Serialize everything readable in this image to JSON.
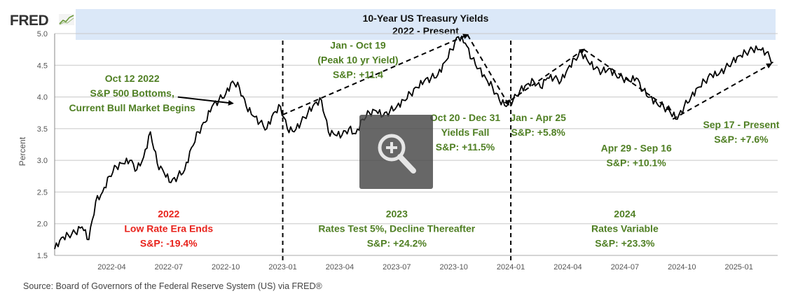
{
  "logo": {
    "text": "FRED"
  },
  "title": {
    "line1": "10-Year US Treasury Yields",
    "line2": "2022 - Present"
  },
  "source": "Source: Board of Governors of the Federal Reserve System (US) via FRED®",
  "zoom_icon": "zoom-in-icon",
  "colors": {
    "line": "#000000",
    "green": "#4f7f23",
    "red": "#e8221b",
    "banner": "#dbe8f8",
    "grid": "#c8c8c8"
  },
  "chart_data": {
    "type": "line",
    "title": "10-Year US Treasury Yields 2022 - Present",
    "ylabel": "Percent",
    "xlabel": "",
    "ylim": [
      1.5,
      5.0
    ],
    "xlim": [
      2022.0,
      2025.17
    ],
    "grid": true,
    "y_ticks": [
      1.5,
      2.0,
      2.5,
      3.0,
      3.5,
      4.0,
      4.5,
      5.0
    ],
    "y_tick_labels": [
      "1.5",
      "2.0",
      "2.5",
      "3.0",
      "3.5",
      "4.0",
      "4.5",
      "5.0"
    ],
    "x_ticks": [
      {
        "x": 2022.25,
        "label": "2022-04"
      },
      {
        "x": 2022.5,
        "label": "2022-07"
      },
      {
        "x": 2022.75,
        "label": "2022-10"
      },
      {
        "x": 2023.0,
        "label": "2023-01"
      },
      {
        "x": 2023.25,
        "label": "2023-04"
      },
      {
        "x": 2023.5,
        "label": "2023-07"
      },
      {
        "x": 2023.75,
        "label": "2023-10"
      },
      {
        "x": 2024.0,
        "label": "2024-01"
      },
      {
        "x": 2024.25,
        "label": "2024-04"
      },
      {
        "x": 2024.5,
        "label": "2024-07"
      },
      {
        "x": 2024.75,
        "label": "2024-10"
      },
      {
        "x": 2025.0,
        "label": "2025-01"
      }
    ],
    "series": [
      {
        "name": "10-Year US Treasury Yield",
        "x": [
          2022.0,
          2022.03,
          2022.06,
          2022.09,
          2022.12,
          2022.15,
          2022.18,
          2022.21,
          2022.24,
          2022.27,
          2022.3,
          2022.33,
          2022.36,
          2022.39,
          2022.42,
          2022.45,
          2022.48,
          2022.51,
          2022.54,
          2022.57,
          2022.6,
          2022.63,
          2022.66,
          2022.69,
          2022.72,
          2022.75,
          2022.78,
          2022.81,
          2022.84,
          2022.87,
          2022.9,
          2022.93,
          2022.96,
          2022.99,
          2023.02,
          2023.05,
          2023.08,
          2023.11,
          2023.14,
          2023.17,
          2023.2,
          2023.23,
          2023.26,
          2023.29,
          2023.32,
          2023.35,
          2023.38,
          2023.41,
          2023.44,
          2023.47,
          2023.5,
          2023.53,
          2023.56,
          2023.59,
          2023.62,
          2023.65,
          2023.68,
          2023.71,
          2023.74,
          2023.77,
          2023.8,
          2023.83,
          2023.86,
          2023.89,
          2023.92,
          2023.95,
          2023.98,
          2024.01,
          2024.04,
          2024.07,
          2024.1,
          2024.13,
          2024.16,
          2024.19,
          2024.22,
          2024.25,
          2024.28,
          2024.31,
          2024.34,
          2024.37,
          2024.4,
          2024.43,
          2024.46,
          2024.49,
          2024.52,
          2024.55,
          2024.58,
          2024.61,
          2024.64,
          2024.67,
          2024.7,
          2024.73,
          2024.76,
          2024.79,
          2024.82,
          2024.85,
          2024.88,
          2024.91,
          2024.94,
          2024.97,
          2025.0,
          2025.03,
          2025.06,
          2025.09,
          2025.12,
          2025.15
        ],
        "values": [
          1.6,
          1.78,
          1.82,
          1.86,
          1.95,
          1.75,
          2.35,
          2.5,
          2.75,
          2.9,
          2.95,
          3.0,
          2.85,
          3.05,
          3.45,
          2.95,
          2.8,
          2.65,
          2.75,
          2.85,
          3.2,
          3.45,
          3.6,
          3.85,
          3.95,
          4.05,
          4.25,
          4.15,
          3.85,
          3.7,
          3.6,
          3.5,
          3.75,
          3.85,
          3.5,
          3.45,
          3.6,
          3.75,
          3.9,
          3.95,
          3.45,
          3.4,
          3.4,
          3.5,
          3.42,
          3.65,
          3.75,
          3.78,
          3.7,
          3.78,
          3.85,
          3.95,
          4.05,
          4.15,
          4.25,
          4.3,
          4.35,
          4.55,
          4.75,
          4.95,
          4.85,
          4.6,
          4.45,
          4.3,
          4.15,
          3.95,
          3.85,
          3.95,
          4.1,
          4.2,
          4.25,
          4.15,
          4.3,
          4.3,
          4.25,
          4.45,
          4.6,
          4.7,
          4.55,
          4.45,
          4.4,
          4.45,
          4.35,
          4.3,
          4.25,
          4.3,
          4.1,
          4.0,
          3.9,
          3.85,
          3.75,
          3.65,
          3.85,
          4.0,
          4.15,
          4.25,
          4.35,
          4.35,
          4.45,
          4.55,
          4.65,
          4.7,
          4.75,
          4.75,
          4.7,
          4.55
        ]
      }
    ],
    "dividers": [
      2023.0,
      2024.0
    ],
    "trend_arrows": [
      {
        "from": [
          2023.0,
          3.72
        ],
        "to": [
          2023.81,
          4.98
        ]
      },
      {
        "from": [
          2023.81,
          4.98
        ],
        "to": [
          2023.99,
          3.88
        ]
      },
      {
        "from": [
          2024.0,
          3.95
        ],
        "to": [
          2024.32,
          4.75
        ]
      },
      {
        "from": [
          2024.32,
          4.75
        ],
        "to": [
          2024.7,
          3.8
        ]
      },
      {
        "from": [
          2024.71,
          3.65
        ],
        "to": [
          2025.14,
          4.52
        ]
      }
    ],
    "pointer_arrow": {
      "from": [
        2022.54,
        4.0
      ],
      "to": [
        2022.78,
        3.9
      ]
    },
    "annotations": [
      {
        "id": "oct-12-2022",
        "color": "green",
        "lines": [
          "Oct 12 2022",
          "S&P 500 Bottoms,",
          "Current Bull Market Begins"
        ],
        "at": [
          2022.34,
          4.24
        ],
        "anchor": "middle"
      },
      {
        "id": "jan-oct-19",
        "color": "green",
        "lines": [
          "Jan - Oct 19",
          "(Peak 10 yr Yield)",
          "S&P: +11.4"
        ],
        "at": [
          2023.33,
          4.76
        ],
        "anchor": "middle"
      },
      {
        "id": "oct-20-dec-31",
        "color": "green",
        "lines": [
          "Oct 20 - Dec 31",
          "Yields Fall",
          "S&P: +11.5%"
        ],
        "at": [
          2023.8,
          3.62
        ],
        "anchor": "middle"
      },
      {
        "id": "jan-apr-25",
        "color": "green",
        "lines": [
          "Jan - Apr 25",
          "S&P: +5.8%"
        ],
        "at": [
          2024.12,
          3.62
        ],
        "anchor": "middle"
      },
      {
        "id": "apr-29-sep-16",
        "color": "green",
        "lines": [
          "Apr 29 - Sep 16",
          "S&P: +10.1%"
        ],
        "at": [
          2024.55,
          3.14
        ],
        "anchor": "middle"
      },
      {
        "id": "sep-17-present",
        "color": "green",
        "lines": [
          "Sep 17 - Present",
          "S&P: +7.6%"
        ],
        "at": [
          2025.01,
          3.51
        ],
        "anchor": "middle"
      },
      {
        "id": "year-2022",
        "color": "red",
        "lines": [
          "2022",
          "Low Rate Era Ends",
          "S&P: -19.4%"
        ],
        "at": [
          2022.5,
          2.1
        ],
        "anchor": "middle"
      },
      {
        "id": "year-2023",
        "color": "green",
        "lines": [
          "2023",
          "Rates Test 5%, Decline Thereafter",
          "S&P: +24.2%"
        ],
        "at": [
          2023.5,
          2.1
        ],
        "anchor": "middle"
      },
      {
        "id": "year-2024",
        "color": "green",
        "lines": [
          "2024",
          "Rates Variable",
          "S&P: +23.3%"
        ],
        "at": [
          2024.5,
          2.1
        ],
        "anchor": "middle"
      }
    ]
  }
}
